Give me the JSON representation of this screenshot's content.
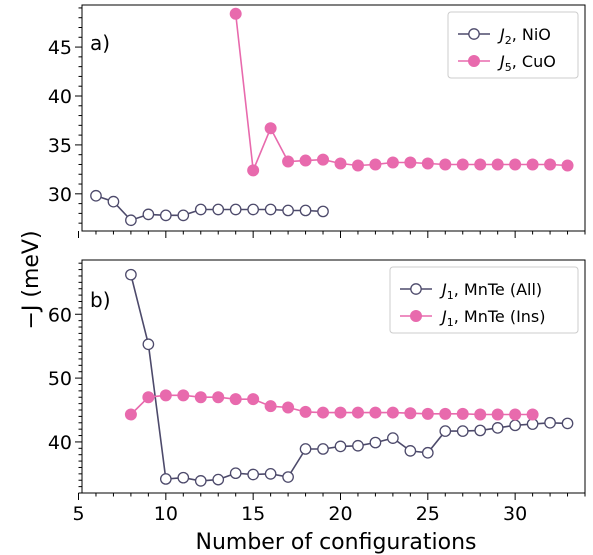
{
  "colors": {
    "nio": "#4d4a6b",
    "cuo": "#e86aad",
    "mnte_all": "#4d4a6b",
    "mnte_ins": "#e86aad"
  },
  "figure": {
    "xlabel": "Number of configurations",
    "ylabel": "−J (meV)"
  },
  "chart_data": [
    {
      "type": "line",
      "panel_label": "a)",
      "xlim": [
        5.2,
        34.0
      ],
      "ylim": [
        26.2,
        49.3
      ],
      "xticks": [
        5,
        10,
        15,
        20,
        25,
        30
      ],
      "yticks": [
        30,
        35,
        40,
        45
      ],
      "show_xtick_labels": false,
      "grid": false,
      "legend_position": "top-right",
      "series": [
        {
          "name_var": "J",
          "name_sub": "2",
          "name_rest": ", NiO",
          "marker": "open-circle",
          "color": "#4d4a6b",
          "x": [
            6,
            7,
            8,
            9,
            10,
            11,
            12,
            13,
            14,
            15,
            16,
            17,
            18,
            19
          ],
          "y": [
            29.8,
            29.2,
            27.3,
            27.9,
            27.8,
            27.8,
            28.4,
            28.4,
            28.4,
            28.4,
            28.4,
            28.3,
            28.3,
            28.2
          ]
        },
        {
          "name_var": "J",
          "name_sub": "5",
          "name_rest": ", CuO",
          "marker": "filled-circle",
          "color": "#e86aad",
          "x": [
            14,
            15,
            16,
            17,
            18,
            19,
            20,
            21,
            22,
            23,
            24,
            25,
            26,
            27,
            28,
            29,
            30,
            31,
            32,
            33
          ],
          "y": [
            48.4,
            32.4,
            36.7,
            33.3,
            33.4,
            33.5,
            33.1,
            32.9,
            33.0,
            33.2,
            33.2,
            33.1,
            33.0,
            33.0,
            33.0,
            33.0,
            33.0,
            33.0,
            33.0,
            32.9
          ]
        }
      ]
    },
    {
      "type": "line",
      "panel_label": "b)",
      "xlim": [
        5.2,
        34.0
      ],
      "ylim": [
        32.0,
        68.5
      ],
      "xticks": [
        5,
        10,
        15,
        20,
        25,
        30
      ],
      "yticks": [
        40,
        50,
        60
      ],
      "show_xtick_labels": true,
      "grid": false,
      "legend_position": "top-right",
      "series": [
        {
          "name_var": "J",
          "name_sub": "1",
          "name_rest": ", MnTe (All)",
          "marker": "open-circle",
          "color": "#4d4a6b",
          "x": [
            8,
            9,
            10,
            11,
            12,
            13,
            14,
            15,
            16,
            17,
            18,
            19,
            20,
            21,
            22,
            23,
            24,
            25,
            26,
            27,
            28,
            29,
            30,
            31,
            32,
            33
          ],
          "y": [
            66.2,
            55.3,
            34.2,
            34.4,
            33.9,
            34.1,
            35.1,
            34.9,
            35.0,
            34.5,
            38.9,
            38.9,
            39.3,
            39.4,
            39.9,
            40.6,
            38.6,
            38.3,
            41.7,
            41.7,
            41.8,
            42.2,
            42.6,
            42.8,
            43.0,
            42.9
          ]
        },
        {
          "name_var": "J",
          "name_sub": "1",
          "name_rest": ", MnTe (Ins)",
          "marker": "filled-circle",
          "color": "#e86aad",
          "x": [
            8,
            9,
            10,
            11,
            12,
            13,
            14,
            15,
            16,
            17,
            18,
            19,
            20,
            21,
            22,
            23,
            24,
            25,
            26,
            27,
            28,
            29,
            30,
            31
          ],
          "y": [
            44.3,
            47.0,
            47.3,
            47.3,
            47.0,
            47.0,
            46.7,
            46.7,
            45.6,
            45.4,
            44.7,
            44.6,
            44.6,
            44.6,
            44.6,
            44.6,
            44.5,
            44.4,
            44.4,
            44.4,
            44.3,
            44.3,
            44.3,
            44.3
          ]
        }
      ]
    }
  ]
}
